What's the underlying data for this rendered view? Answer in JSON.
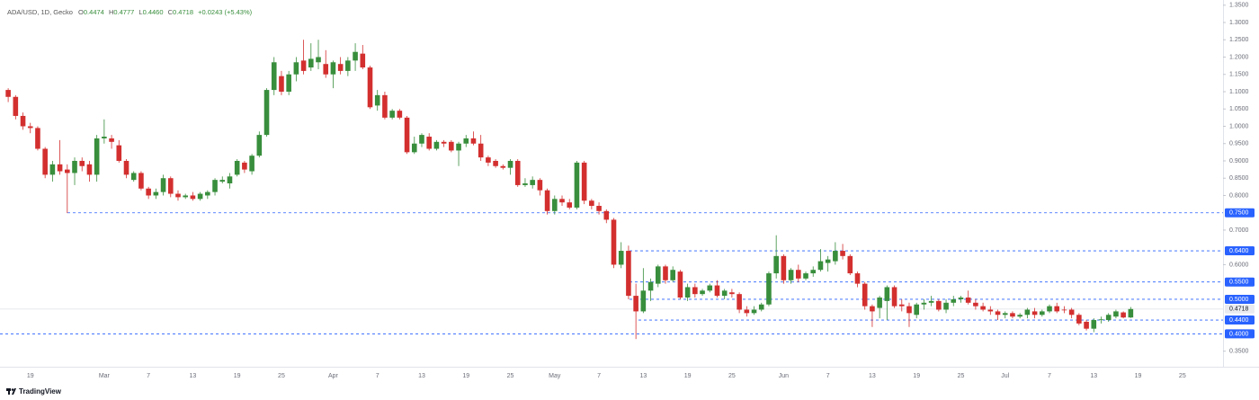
{
  "chart_data": {
    "type": "candlestick",
    "title": "ADA/USD, 1D, Gecko",
    "ohlc": [
      {
        "key": "O",
        "value": "0.4474"
      },
      {
        "key": "H",
        "value": "0.4777"
      },
      {
        "key": "L",
        "value": "0.4460"
      },
      {
        "key": "C",
        "value": "0.4718"
      }
    ],
    "change": "+0.0243 (+5.43%)",
    "brand": "TradingView",
    "up_color": "#388e3c",
    "down_color": "#d32f2f",
    "level_color": "#2962ff",
    "categories": [
      null,
      null,
      null,
      "19",
      null,
      null,
      null,
      null,
      null,
      null,
      null,
      null,
      null,
      "Mar",
      null,
      null,
      null,
      null,
      null,
      "7",
      null,
      null,
      null,
      null,
      null,
      "13",
      null,
      null,
      null,
      null,
      null,
      "19",
      null,
      null,
      null,
      null,
      null,
      "25",
      null,
      null,
      null,
      null,
      null,
      null,
      "Apr",
      null,
      null,
      null,
      null,
      null,
      "7",
      null,
      null,
      null,
      null,
      null,
      "13",
      null,
      null,
      null,
      null,
      null,
      "19",
      null,
      null,
      null,
      null,
      null,
      "25",
      null,
      null,
      null,
      null,
      null,
      "May",
      null,
      null,
      null,
      null,
      null,
      "7",
      null,
      null,
      null,
      null,
      null,
      "13",
      null,
      null,
      null,
      null,
      null,
      "19",
      null,
      null,
      null,
      null,
      null,
      "25",
      null,
      null,
      null,
      null,
      null,
      null,
      "Jun",
      null,
      null,
      null,
      null,
      null,
      "7",
      null,
      null,
      null,
      null,
      null,
      "13",
      null,
      null,
      null,
      null,
      null,
      "19",
      null,
      null,
      null,
      null,
      null,
      "25",
      null,
      null,
      null,
      null,
      null,
      "Jul",
      null,
      null,
      null,
      null,
      null,
      "7",
      null,
      null,
      null,
      null,
      null,
      "13",
      null,
      null,
      null,
      null,
      null,
      "19",
      null,
      null,
      null,
      null,
      null,
      "25",
      null,
      null,
      null,
      null,
      null
    ],
    "open": [
      1.105,
      1.085,
      1.03,
      1.0,
      0.995,
      0.935,
      0.86,
      0.89,
      0.875,
      0.865,
      0.9,
      0.89,
      0.86,
      0.965,
      0.965,
      0.945,
      0.9,
      0.845,
      0.865,
      0.82,
      0.8,
      0.81,
      0.85,
      0.805,
      0.795,
      0.8,
      0.79,
      0.8,
      0.81,
      0.84,
      0.835,
      0.86,
      0.895,
      0.87,
      0.915,
      0.975,
      1.105,
      1.145,
      1.1,
      1.15,
      1.19,
      1.17,
      1.185,
      1.18,
      1.15,
      1.18,
      1.16,
      1.19,
      1.21,
      1.17,
      1.06,
      1.09,
      1.025,
      1.045,
      1.025,
      0.925,
      0.95,
      0.97,
      0.935,
      0.955,
      0.955,
      0.93,
      0.95,
      0.965,
      0.95,
      0.91,
      0.9,
      0.885,
      0.88,
      0.9,
      0.83,
      0.83,
      0.845,
      0.815,
      0.755,
      0.79,
      0.78,
      0.765,
      0.895,
      0.785,
      0.77,
      0.755,
      0.73,
      0.6,
      0.64,
      0.51,
      0.465,
      0.525,
      0.545,
      0.595,
      0.555,
      0.58,
      0.505,
      0.535,
      0.515,
      0.525,
      0.54,
      0.51,
      0.52,
      0.515,
      0.47,
      0.46,
      0.47,
      0.485,
      0.575,
      0.625,
      0.555,
      0.585,
      0.56,
      0.575,
      0.585,
      0.605,
      0.61,
      0.64,
      0.625,
      0.575,
      0.545,
      0.48,
      0.475,
      0.495,
      0.535,
      0.485,
      0.48,
      0.455,
      0.485,
      0.49,
      0.495,
      0.47,
      0.49,
      0.5,
      0.505,
      0.49,
      0.48,
      0.47,
      0.465,
      0.455,
      0.46,
      0.45,
      0.455,
      0.465,
      0.455,
      0.465,
      0.48,
      0.47,
      0.47,
      0.455,
      0.435,
      0.415,
      0.44,
      0.44,
      0.45,
      0.462,
      0.4474,
      null,
      null,
      null,
      null,
      null,
      null,
      null,
      null,
      null,
      null,
      null,
      null
    ],
    "high": [
      1.11,
      1.09,
      1.04,
      1.01,
      1.0,
      0.94,
      0.9,
      0.96,
      0.89,
      0.91,
      0.91,
      0.9,
      0.975,
      1.02,
      0.975,
      0.96,
      0.905,
      0.87,
      0.87,
      0.825,
      0.82,
      0.86,
      0.855,
      0.815,
      0.805,
      0.81,
      0.81,
      0.815,
      0.85,
      0.855,
      0.865,
      0.905,
      0.9,
      0.92,
      0.985,
      1.11,
      1.2,
      1.16,
      1.16,
      1.2,
      1.25,
      1.24,
      1.25,
      1.22,
      1.19,
      1.2,
      1.2,
      1.24,
      1.235,
      1.175,
      1.105,
      1.1,
      1.05,
      1.05,
      1.03,
      0.97,
      0.98,
      0.98,
      0.96,
      0.96,
      0.96,
      0.955,
      0.975,
      0.985,
      0.975,
      0.915,
      0.905,
      0.89,
      0.905,
      0.905,
      0.85,
      0.855,
      0.85,
      0.82,
      0.8,
      0.8,
      0.79,
      0.9,
      0.9,
      0.79,
      0.78,
      0.76,
      0.735,
      0.665,
      0.655,
      0.545,
      0.59,
      0.56,
      0.6,
      0.6,
      0.595,
      0.585,
      0.545,
      0.545,
      0.53,
      0.545,
      0.555,
      0.53,
      0.53,
      0.52,
      0.48,
      0.48,
      0.49,
      0.58,
      0.685,
      0.63,
      0.59,
      0.6,
      0.58,
      0.595,
      0.645,
      0.625,
      0.665,
      0.66,
      0.63,
      0.58,
      0.55,
      0.485,
      0.51,
      0.54,
      0.54,
      0.5,
      0.49,
      0.49,
      0.5,
      0.51,
      0.5,
      0.5,
      0.51,
      0.51,
      0.525,
      0.5,
      0.49,
      0.48,
      0.47,
      0.465,
      0.465,
      0.46,
      0.475,
      0.475,
      0.47,
      0.485,
      0.49,
      0.48,
      0.475,
      0.46,
      0.44,
      0.445,
      0.45,
      0.46,
      0.47,
      0.465,
      0.4777,
      null,
      null,
      null,
      null,
      null,
      null,
      null,
      null,
      null,
      null,
      null,
      null
    ],
    "low": [
      1.07,
      1.02,
      0.99,
      0.98,
      0.93,
      0.85,
      0.84,
      0.86,
      0.749,
      0.83,
      0.87,
      0.84,
      0.84,
      0.95,
      0.935,
      0.895,
      0.85,
      0.84,
      0.815,
      0.79,
      0.79,
      0.8,
      0.795,
      0.785,
      0.79,
      0.785,
      0.785,
      0.79,
      0.8,
      0.835,
      0.82,
      0.855,
      0.865,
      0.86,
      0.91,
      0.97,
      1.09,
      1.09,
      1.09,
      1.13,
      1.15,
      1.16,
      1.165,
      1.14,
      1.11,
      1.15,
      1.145,
      1.16,
      1.165,
      1.05,
      1.045,
      1.02,
      1.02,
      1.02,
      0.92,
      0.92,
      0.94,
      0.93,
      0.93,
      0.94,
      0.925,
      0.885,
      0.94,
      0.945,
      0.9,
      0.885,
      0.88,
      0.875,
      0.86,
      0.825,
      0.825,
      0.82,
      0.8,
      0.745,
      0.745,
      0.77,
      0.76,
      0.76,
      0.775,
      0.76,
      0.745,
      0.72,
      0.59,
      0.59,
      0.5,
      0.385,
      0.46,
      0.495,
      0.535,
      0.545,
      0.55,
      0.5,
      0.495,
      0.505,
      0.51,
      0.52,
      0.505,
      0.5,
      0.505,
      0.46,
      0.45,
      0.455,
      0.465,
      0.48,
      0.56,
      0.545,
      0.545,
      0.55,
      0.555,
      0.565,
      0.58,
      0.58,
      0.6,
      0.615,
      0.57,
      0.535,
      0.47,
      0.42,
      0.445,
      0.44,
      0.475,
      0.465,
      0.42,
      0.445,
      0.47,
      0.48,
      0.465,
      0.46,
      0.48,
      0.49,
      0.485,
      0.47,
      0.465,
      0.455,
      0.44,
      0.445,
      0.445,
      0.445,
      0.445,
      0.445,
      0.45,
      0.46,
      0.46,
      0.46,
      0.445,
      0.425,
      0.41,
      0.405,
      0.43,
      0.435,
      0.445,
      0.445,
      0.446,
      null,
      null,
      null,
      null,
      null,
      null,
      null,
      null,
      null,
      null,
      null,
      null
    ],
    "close": [
      1.085,
      1.03,
      1.0,
      0.995,
      0.935,
      0.86,
      0.89,
      0.87,
      0.865,
      0.9,
      0.885,
      0.86,
      0.965,
      0.97,
      0.955,
      0.9,
      0.86,
      0.865,
      0.82,
      0.8,
      0.81,
      0.85,
      0.805,
      0.795,
      0.8,
      0.79,
      0.805,
      0.81,
      0.845,
      0.845,
      0.855,
      0.9,
      0.875,
      0.915,
      0.975,
      1.105,
      1.185,
      1.1,
      1.15,
      1.185,
      1.16,
      1.195,
      1.2,
      1.15,
      1.185,
      1.16,
      1.19,
      1.215,
      1.17,
      1.055,
      1.09,
      1.025,
      1.045,
      1.025,
      0.925,
      0.95,
      0.975,
      0.935,
      0.955,
      0.95,
      0.93,
      0.95,
      0.965,
      0.95,
      0.91,
      0.895,
      0.885,
      0.88,
      0.9,
      0.83,
      0.835,
      0.845,
      0.815,
      0.755,
      0.79,
      0.78,
      0.765,
      0.895,
      0.785,
      0.77,
      0.755,
      0.73,
      0.6,
      0.64,
      0.51,
      0.465,
      0.525,
      0.55,
      0.595,
      0.555,
      0.585,
      0.505,
      0.535,
      0.515,
      0.525,
      0.54,
      0.51,
      0.525,
      0.515,
      0.47,
      0.46,
      0.47,
      0.485,
      0.575,
      0.625,
      0.555,
      0.585,
      0.56,
      0.575,
      0.585,
      0.61,
      0.615,
      0.64,
      0.625,
      0.575,
      0.545,
      0.48,
      0.465,
      0.505,
      0.535,
      0.48,
      0.48,
      0.46,
      0.485,
      0.49,
      0.495,
      0.47,
      0.49,
      0.5,
      0.505,
      0.49,
      0.48,
      0.47,
      0.465,
      0.455,
      0.46,
      0.45,
      0.455,
      0.47,
      0.455,
      0.465,
      0.48,
      0.465,
      0.468,
      0.455,
      0.43,
      0.415,
      0.44,
      0.442,
      0.455,
      0.465,
      0.4474,
      0.4718,
      null,
      null,
      null,
      null,
      null,
      null,
      null,
      null,
      null,
      null,
      null,
      null
    ],
    "ylim": [
      0.305,
      1.365
    ],
    "yticks": [
      {
        "value": 1.35,
        "label": "1.3500"
      },
      {
        "value": 1.3,
        "label": "1.3000"
      },
      {
        "value": 1.25,
        "label": "1.2500"
      },
      {
        "value": 1.2,
        "label": "1.2000"
      },
      {
        "value": 1.15,
        "label": "1.1500"
      },
      {
        "value": 1.1,
        "label": "1.1000"
      },
      {
        "value": 1.05,
        "label": "1.0500"
      },
      {
        "value": 1.0,
        "label": "1.0000"
      },
      {
        "value": 0.95,
        "label": "0.9500"
      },
      {
        "value": 0.9,
        "label": "0.9000"
      },
      {
        "value": 0.85,
        "label": "0.8500"
      },
      {
        "value": 0.8,
        "label": "0.8000"
      },
      {
        "value": 0.7,
        "label": "0.7000"
      },
      {
        "value": 0.6,
        "label": "0.6000"
      },
      {
        "value": 0.35,
        "label": "0.3500"
      }
    ],
    "levels": [
      {
        "value": 0.75,
        "label": "0.7500"
      },
      {
        "value": 0.64,
        "label": "0.6400"
      },
      {
        "value": 0.55,
        "label": "0.5500"
      },
      {
        "value": 0.5,
        "label": "0.5000"
      },
      {
        "value": 0.44,
        "label": "0.4400"
      },
      {
        "value": 0.4,
        "label": "0.4000"
      }
    ],
    "last_price": {
      "value": 0.4718,
      "label": "0.4718"
    }
  }
}
